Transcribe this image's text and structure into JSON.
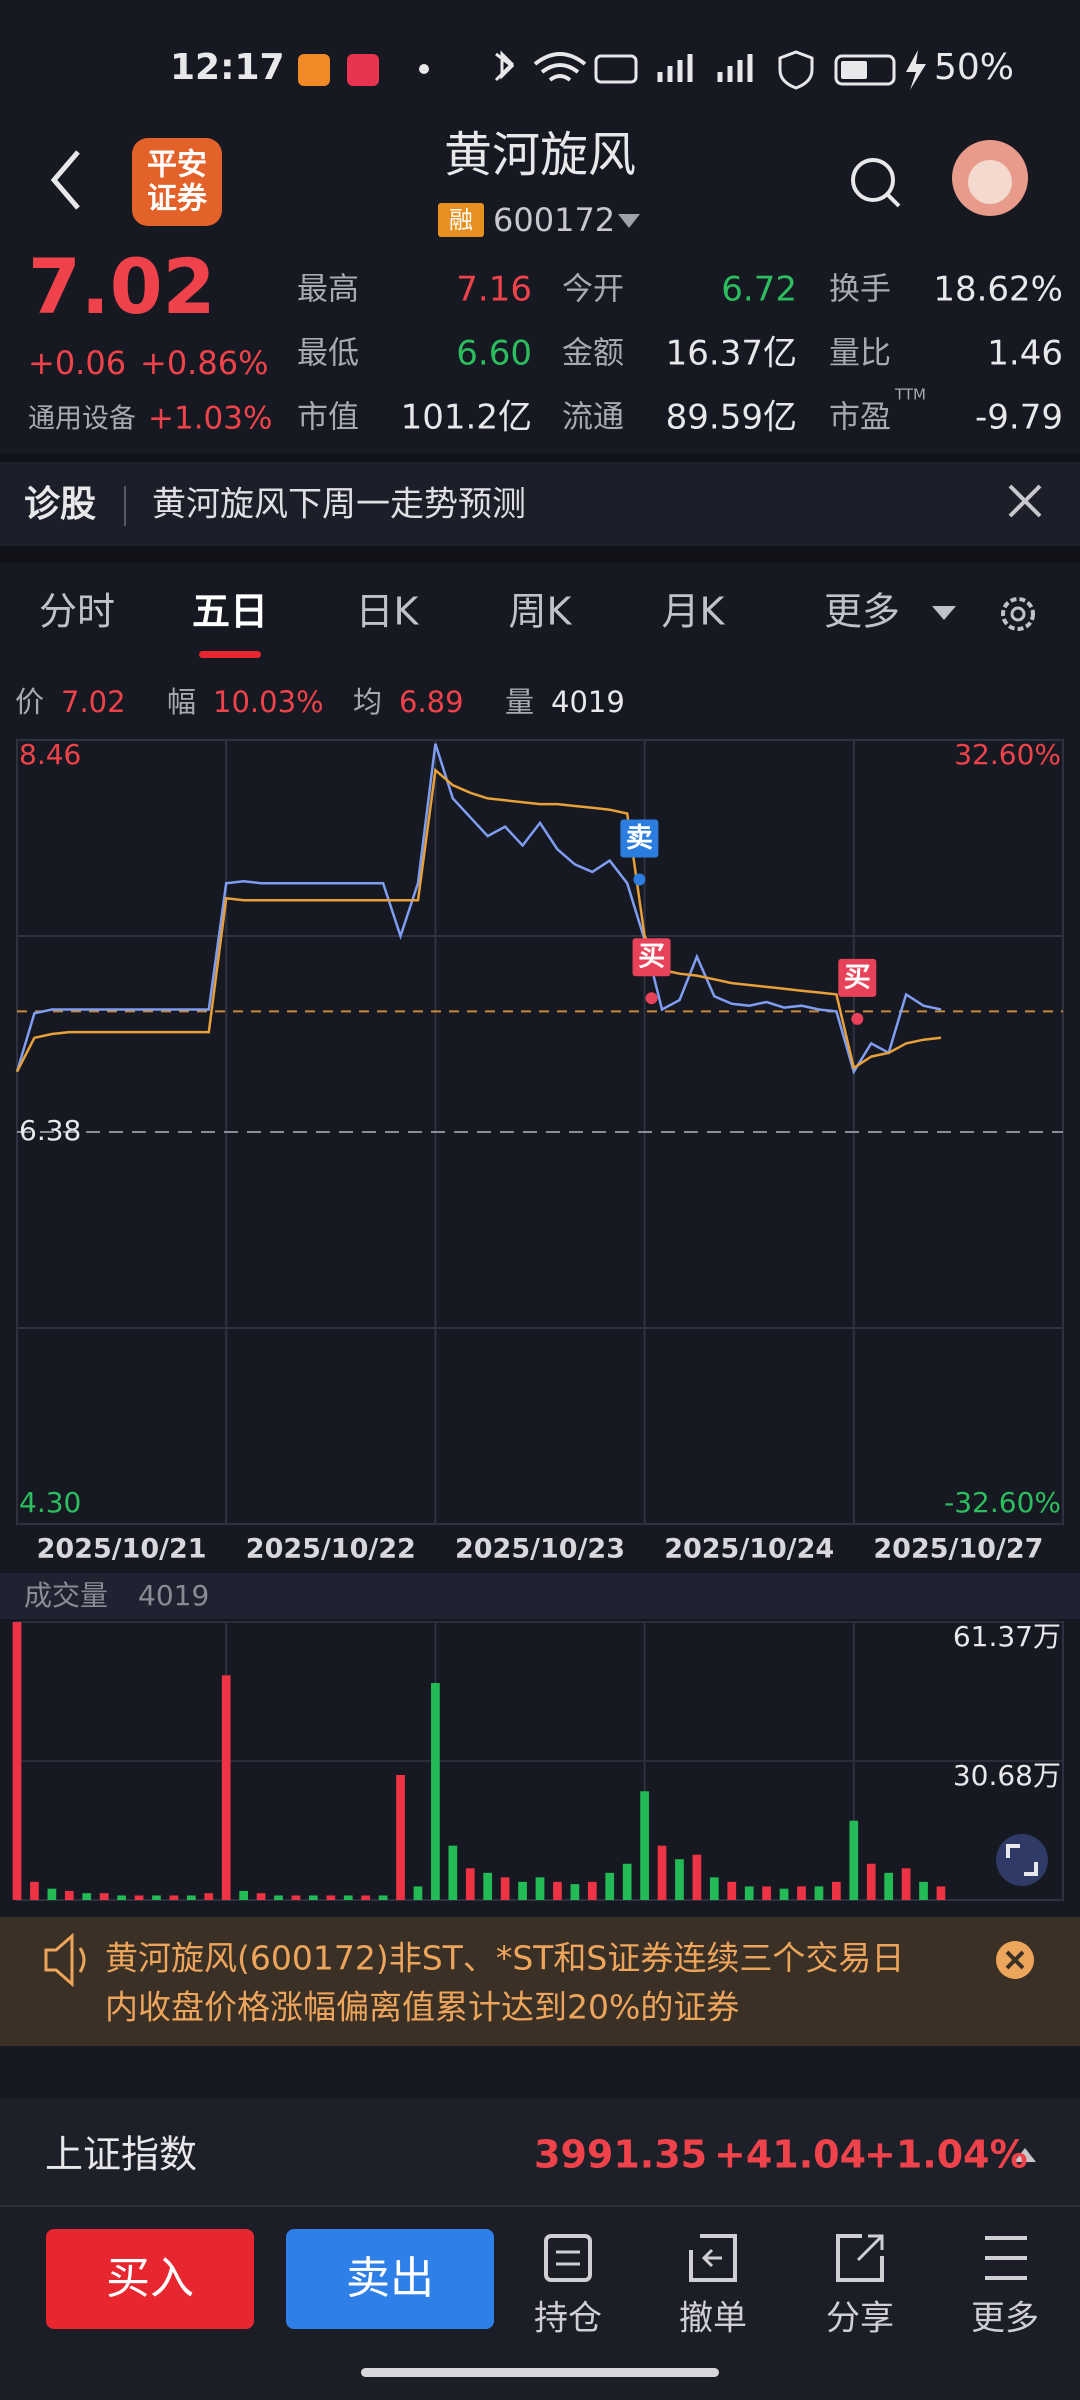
{
  "status_bar": {
    "time": "12:17",
    "battery": "50%"
  },
  "header": {
    "logo": [
      "平安",
      "证券"
    ],
    "title": "黄河旋风",
    "badge": "融",
    "code": "600172"
  },
  "quote": {
    "price": "7.02",
    "change": "+0.06",
    "change_pct": "+0.86%",
    "sector": "通用设备",
    "sector_pct": "+1.03%",
    "stats": [
      [
        {
          "label": "最高",
          "value": "7.16",
          "color": "#f0424a"
        },
        {
          "label": "今开",
          "value": "6.72",
          "color": "#2bbd5e"
        },
        {
          "label": "换手",
          "value": "18.62%",
          "color": "#e8e8ea"
        }
      ],
      [
        {
          "label": "最低",
          "value": "6.60",
          "color": "#2bbd5e"
        },
        {
          "label": "金额",
          "value": "16.37亿",
          "color": "#e8e8ea"
        },
        {
          "label": "量比",
          "value": "1.46",
          "color": "#e8e8ea"
        }
      ],
      [
        {
          "label": "市值",
          "value": "101.2亿",
          "color": "#e8e8ea"
        },
        {
          "label": "流通",
          "value": "89.59亿",
          "color": "#e8e8ea"
        },
        {
          "label": "市盈",
          "value": "-9.79",
          "color": "#e8e8ea",
          "sup": "TTM"
        }
      ]
    ]
  },
  "banner": {
    "tag": "诊股",
    "text": "黄河旋风下周一走势预测"
  },
  "tabs": {
    "items": [
      "分时",
      "五日",
      "日K",
      "周K",
      "月K",
      "更多"
    ],
    "active": 1
  },
  "info": [
    {
      "label": "价",
      "value": "7.02",
      "color": "#f0424a"
    },
    {
      "label": "幅",
      "value": "10.03%",
      "color": "#f0424a"
    },
    {
      "label": "均",
      "value": "6.89",
      "color": "#f0424a"
    },
    {
      "label": "量",
      "value": "4019",
      "color": "#e8e8ea"
    }
  ],
  "chart_data": [
    {
      "type": "line",
      "x": [
        0,
        1,
        2,
        3,
        4,
        5,
        6,
        7,
        8,
        9,
        10,
        11,
        12,
        13,
        14,
        15,
        16,
        17,
        18,
        19,
        20,
        21,
        22,
        23,
        24,
        25,
        26,
        27,
        28,
        29,
        30,
        31,
        32,
        33,
        34,
        35,
        36,
        37,
        38,
        39,
        40,
        41,
        42,
        43,
        44,
        45,
        46,
        47,
        48,
        49,
        50,
        51,
        52,
        53
      ],
      "xlim": [
        0,
        60
      ],
      "xticks": [
        {
          "value": 6,
          "label": "2025/10/21"
        },
        {
          "value": 18,
          "label": "2025/10/22"
        },
        {
          "value": 30,
          "label": "2025/10/23"
        },
        {
          "value": 42,
          "label": "2025/10/24"
        },
        {
          "value": 54,
          "label": "2025/10/27"
        }
      ],
      "ylim": [
        4.3,
        8.46
      ],
      "yticks": [
        8.46,
        6.38,
        {
          "value": 4.3,
          "label": "4.30"
        }
      ],
      "y2lim": [
        -32.6,
        32.6
      ],
      "y2ticks": [
        {
          "value": 32.6,
          "label": "32.60%"
        },
        {
          "value": -32.6,
          "label": "-32.60%"
        }
      ],
      "grid": true,
      "last_price": 7.02,
      "series": [
        {
          "color": "#7f9ef2",
          "values": [
            6.7,
            7.01,
            7.03,
            7.03,
            7.03,
            7.03,
            7.03,
            7.03,
            7.03,
            7.03,
            7.03,
            7.03,
            7.7,
            7.71,
            7.7,
            7.7,
            7.7,
            7.7,
            7.7,
            7.7,
            7.7,
            7.7,
            7.42,
            7.7,
            8.44,
            8.15,
            8.05,
            7.95,
            8.0,
            7.9,
            8.02,
            7.88,
            7.8,
            7.76,
            7.82,
            7.7,
            7.4,
            7.03,
            7.08,
            7.31,
            7.1,
            7.06,
            7.05,
            7.07,
            7.04,
            7.05,
            7.03,
            7.02,
            6.7,
            6.85,
            6.8,
            7.11,
            7.05,
            7.03
          ]
        },
        {
          "color": "#e8a03a",
          "values": [
            6.7,
            6.88,
            6.9,
            6.91,
            6.91,
            6.91,
            6.91,
            6.91,
            6.91,
            6.91,
            6.91,
            6.91,
            7.62,
            7.61,
            7.61,
            7.61,
            7.61,
            7.61,
            7.61,
            7.61,
            7.61,
            7.61,
            7.61,
            7.61,
            8.3,
            8.22,
            8.18,
            8.15,
            8.14,
            8.13,
            8.12,
            8.12,
            8.11,
            8.1,
            8.09,
            8.07,
            7.42,
            7.24,
            7.22,
            7.21,
            7.19,
            7.17,
            7.16,
            7.15,
            7.14,
            7.13,
            7.12,
            7.11,
            6.72,
            6.78,
            6.8,
            6.85,
            6.87,
            6.88
          ]
        }
      ],
      "annotations": [
        {
          "text": "卖",
          "x": 35.7,
          "y": 7.72,
          "color": "#2b7de0"
        },
        {
          "text": "买",
          "x": 36.4,
          "y": 7.09,
          "color": "#e8425a"
        },
        {
          "text": "买",
          "x": 48.2,
          "y": 6.98,
          "color": "#e8425a"
        }
      ]
    },
    {
      "type": "bar",
      "title": "成交量",
      "subtitle": "4019",
      "x": [
        0,
        1,
        2,
        3,
        4,
        5,
        6,
        7,
        8,
        9,
        10,
        11,
        12,
        13,
        14,
        15,
        16,
        17,
        18,
        19,
        20,
        21,
        22,
        23,
        24,
        25,
        26,
        27,
        28,
        29,
        30,
        31,
        32,
        33,
        34,
        35,
        36,
        37,
        38,
        39,
        40,
        41,
        42,
        43,
        44,
        45,
        46,
        47,
        48,
        49,
        50,
        51,
        52,
        53
      ],
      "xlim": [
        0,
        60
      ],
      "xticks": [
        6,
        18,
        30,
        42,
        54
      ],
      "ylim": [
        0,
        61.37
      ],
      "yticks": [
        {
          "value": 61.37,
          "label": "61.37万"
        },
        {
          "value": 30.68,
          "label": "30.68万"
        }
      ],
      "values": [
        61.37,
        4,
        2.5,
        2,
        1.5,
        1.5,
        1,
        1,
        1,
        1,
        1,
        1.5,
        49.6,
        2,
        1.5,
        1,
        1,
        1,
        1,
        1,
        1,
        1,
        27.6,
        3,
        47.9,
        12,
        7,
        6,
        5,
        4,
        5,
        4,
        3.5,
        4,
        6,
        8,
        24,
        12,
        9,
        10,
        5,
        4,
        3,
        3,
        2.5,
        3,
        3,
        4,
        17.5,
        8,
        6,
        7,
        4,
        3
      ],
      "colors": [
        "#e34",
        "#e34",
        "#2b5",
        "#e34",
        "#2b5",
        "#e34",
        "#2b5",
        "#e34",
        "#2b5",
        "#e34",
        "#2b5",
        "#e34",
        "#e34",
        "#2b5",
        "#e34",
        "#2b5",
        "#e34",
        "#2b5",
        "#e34",
        "#2b5",
        "#e34",
        "#2b5",
        "#e34",
        "#2b5",
        "#2b5",
        "#2b5",
        "#e34",
        "#2b5",
        "#e34",
        "#2b5",
        "#2b5",
        "#e34",
        "#2b5",
        "#e34",
        "#2b5",
        "#2b5",
        "#2b5",
        "#e34",
        "#2b5",
        "#e34",
        "#2b5",
        "#e34",
        "#2b5",
        "#e34",
        "#2b5",
        "#e34",
        "#2b5",
        "#e34",
        "#2b5",
        "#e34",
        "#2b5",
        "#e34",
        "#2b5",
        "#e34"
      ]
    }
  ],
  "notice": {
    "lines": [
      "黄河旋风(600172)非ST、*ST和S证券连续三个交易日",
      "内收盘价格涨幅偏离值累计达到20%的证券"
    ]
  },
  "index_bar": {
    "name": "上证指数",
    "value": "3991.35",
    "change": "+41.04",
    "pct": "+1.04%"
  },
  "bottom_nav": {
    "buy": "买入",
    "sell": "卖出",
    "items": [
      "持仓",
      "撤单",
      "分享",
      "更多"
    ]
  }
}
